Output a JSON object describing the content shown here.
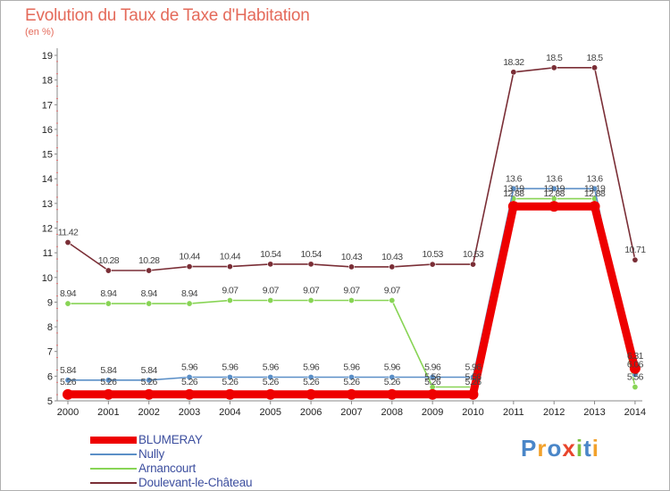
{
  "header": {
    "title": "Evolution du Taux de Taxe d'Habitation",
    "units": "(en %)"
  },
  "chart_data": {
    "type": "line",
    "title": "Evolution du Taux de Taxe d'Habitation",
    "ylabel": "(en %)",
    "xlabel": "",
    "ylim": [
      5,
      19
    ],
    "y_ticks": [
      5,
      6,
      7,
      8,
      9,
      10,
      11,
      12,
      13,
      14,
      15,
      16,
      17,
      18,
      19
    ],
    "categories": [
      "2000",
      "2001",
      "2002",
      "2003",
      "2004",
      "2005",
      "2006",
      "2007",
      "2008",
      "2009",
      "2010",
      "2011",
      "2012",
      "2013",
      "2014"
    ],
    "grid": false,
    "legend_position": "bottom-left",
    "series": [
      {
        "name": "BLUMERAY",
        "color": "#ee0000",
        "values": [
          5.26,
          5.26,
          5.26,
          5.26,
          5.26,
          5.26,
          5.26,
          5.26,
          5.26,
          5.26,
          5.26,
          12.88,
          12.88,
          12.88,
          6.31
        ],
        "labels": [
          "5.26",
          "5.26",
          "5.26",
          "5.26",
          "5.26",
          "5.26",
          "5.26",
          "5.26",
          "5.26",
          "5.26",
          "5.26",
          "12.88",
          "12.88",
          "12.88",
          "6.31"
        ]
      },
      {
        "name": "Nully",
        "color": "#5b8fc7",
        "values": [
          5.84,
          5.84,
          5.84,
          5.96,
          5.96,
          5.96,
          5.96,
          5.96,
          5.96,
          5.96,
          5.96,
          13.6,
          13.6,
          13.6,
          6.06
        ],
        "labels": [
          "5.84",
          "5.84",
          "5.84",
          "5.96",
          "5.96",
          "5.96",
          "5.96",
          "5.96",
          "5.96",
          "5.96",
          "5.96",
          "13.6",
          "13.6",
          "13.6",
          "6.06"
        ]
      },
      {
        "name": "Arnancourt",
        "color": "#88d455",
        "values": [
          8.94,
          8.94,
          8.94,
          8.94,
          9.07,
          9.07,
          9.07,
          9.07,
          9.07,
          5.56,
          5.56,
          13.19,
          13.19,
          13.19,
          5.56
        ],
        "labels": [
          "8.94",
          "8.94",
          "8.94",
          "8.94",
          "9.07",
          "9.07",
          "9.07",
          "9.07",
          "9.07",
          "5.56",
          "5.56",
          "13.19",
          "13.19",
          "13.19",
          "5.56"
        ]
      },
      {
        "name": "Doulevant-le-Château",
        "color": "#7a2e36",
        "values": [
          11.42,
          10.28,
          10.28,
          10.44,
          10.44,
          10.54,
          10.54,
          10.43,
          10.43,
          10.53,
          10.53,
          18.32,
          18.5,
          18.5,
          10.71
        ],
        "labels": [
          "11.42",
          "10.28",
          "10.28",
          "10.44",
          "10.44",
          "10.54",
          "10.54",
          "10.43",
          "10.43",
          "10.53",
          "10.53",
          "18.32",
          "18.5",
          "18.5",
          "10.71"
        ]
      }
    ]
  },
  "legend": {
    "items": [
      {
        "label": "BLUMERAY",
        "color": "#ee0000"
      },
      {
        "label": "Nully",
        "color": "#5b8fc7"
      },
      {
        "label": "Arnancourt",
        "color": "#88d455"
      },
      {
        "label": "Doulevant-le-Château",
        "color": "#7a2e36"
      }
    ]
  },
  "branding": {
    "letters": [
      "P",
      "r",
      "o",
      "x",
      "i",
      "t",
      "i"
    ],
    "colors": [
      "#4a86c8",
      "#f2a12b",
      "#4a86c8",
      "#e8452c",
      "#7cc242",
      "#4a86c8",
      "#f2a12b"
    ]
  }
}
